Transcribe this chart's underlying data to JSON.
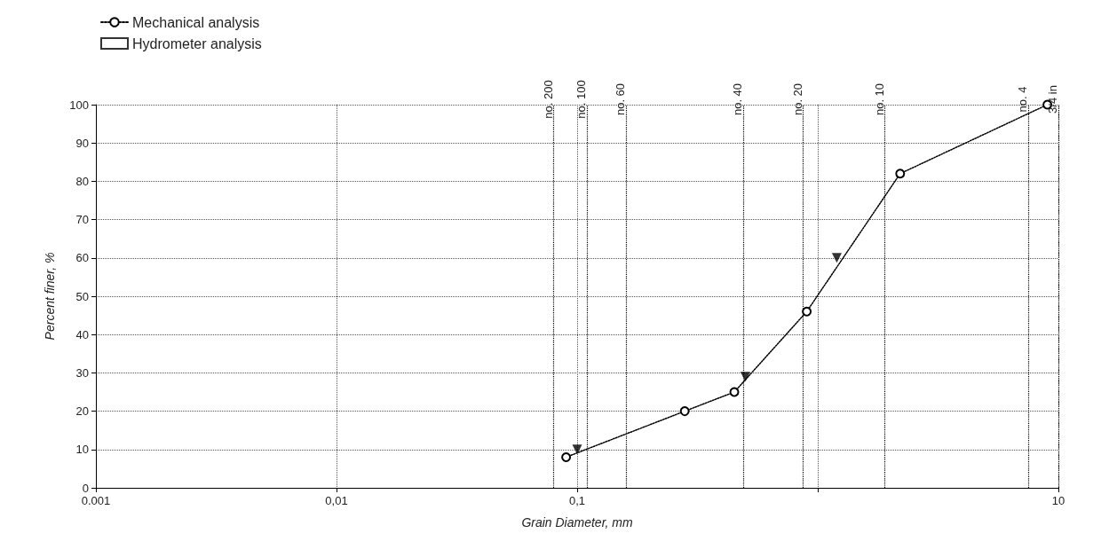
{
  "chart_data": {
    "type": "line",
    "xlabel": "Grain Diameter, mm",
    "ylabel": "Percent finer, %",
    "log": "x",
    "xlim": [
      0.001,
      10
    ],
    "xticks": [
      {
        "value": 0.001,
        "label": "0.001"
      },
      {
        "value": 0.01,
        "label": "0,01"
      },
      {
        "value": 0.1,
        "label": "0,1"
      },
      {
        "value": 1,
        "label": null
      },
      {
        "value": 10,
        "label": "10"
      }
    ],
    "ref_lines": [
      {
        "axis": "x",
        "value": 0.079,
        "label": "no. 200"
      },
      {
        "axis": "x",
        "value": 0.107,
        "label": "no. 100"
      },
      {
        "axis": "x",
        "value": 0.16,
        "label": "no. 60"
      },
      {
        "axis": "x",
        "value": 0.49,
        "label": "no. 40"
      },
      {
        "axis": "x",
        "value": 0.87,
        "label": "no. 20"
      },
      {
        "axis": "x",
        "value": 1.9,
        "label": "no. 10"
      },
      {
        "axis": "x",
        "value": 7.5,
        "label": "no. 4"
      },
      {
        "axis": "x",
        "value": 10,
        "label": "3/4 in"
      }
    ],
    "ylim": [
      0,
      100
    ],
    "yticks": [
      0,
      10,
      20,
      30,
      40,
      50,
      60,
      70,
      80,
      90,
      100
    ],
    "grid": true,
    "legend": "top left",
    "series": [
      {
        "name": "Mechanical analysis",
        "color": "#000000",
        "marker": "circle",
        "line_style": "dotted",
        "x": [
          0.09,
          0.28,
          0.45,
          0.9,
          2.2,
          9
        ],
        "values": [
          8,
          20,
          25,
          46,
          82,
          100
        ]
      },
      {
        "name": "Hydrometer analysis",
        "type": "scatter",
        "color": "#000000",
        "marker": "square"
      },
      {
        "type": "scatter",
        "color": "#000000",
        "marker": "triangle",
        "x": [
          0.1,
          0.5,
          1.2
        ],
        "values": [
          10,
          29,
          60
        ]
      }
    ]
  }
}
